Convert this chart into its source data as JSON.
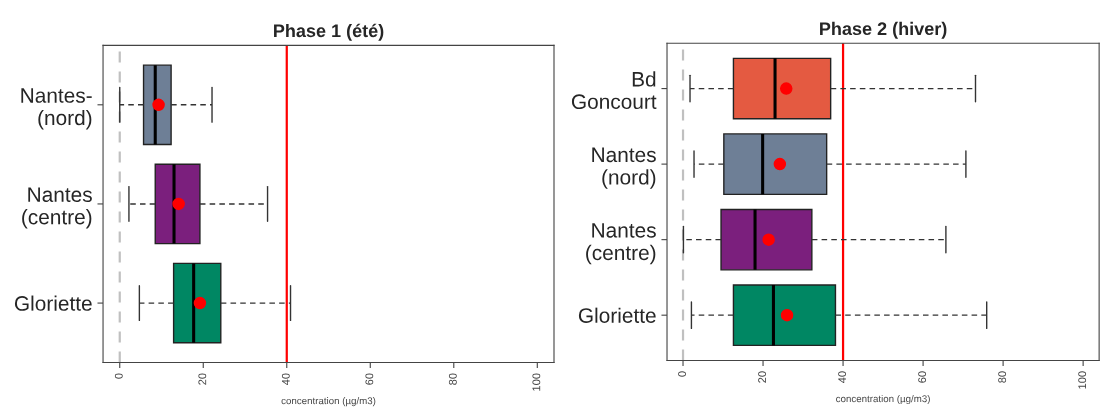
{
  "chart_data": [
    {
      "type": "box",
      "title": "Phase 1 (été)",
      "xlabel": "concentration (µg/m3)",
      "orientation": "horizontal",
      "categories": [
        "Nantes-\n(nord)",
        "Nantes\n(centre)",
        "Gloriette"
      ],
      "colors": [
        "#6e7f96",
        "#7b1f7d",
        "#008763"
      ],
      "boxes": [
        {
          "low": 0,
          "q1": 5.7,
          "median": 8.5,
          "q3": 12.3,
          "high": 22.1,
          "mean": 9.3
        },
        {
          "low": 2.2,
          "q1": 8.5,
          "median": 13.0,
          "q3": 19.2,
          "high": 35.4,
          "mean": 14.1
        },
        {
          "low": 4.7,
          "q1": 12.9,
          "median": 17.7,
          "q3": 24.2,
          "high": 40.9,
          "mean": 19.2
        }
      ],
      "xlim": [
        -4,
        104
      ],
      "xticks": [
        0,
        20,
        40,
        60,
        80,
        100
      ],
      "ref_lines": [
        {
          "axis": "x",
          "value": 0,
          "color": "#c0c0c0",
          "line_style": "dashed"
        },
        {
          "axis": "x",
          "value": 40,
          "color": "#ff0000",
          "line_style": "solid"
        }
      ]
    },
    {
      "type": "box",
      "title": "Phase 2 (hiver)",
      "xlabel": "concentration (µg/m3)",
      "orientation": "horizontal",
      "categories": [
        "Bd\nGoncourt",
        "Nantes\n(nord)",
        "Nantes\n(centre)",
        "Gloriette"
      ],
      "colors": [
        "#e45a41",
        "#6e7f96",
        "#7b1f7d",
        "#008763"
      ],
      "boxes": [
        {
          "low": 1.75,
          "q1": 12.6,
          "median": 23.0,
          "q3": 36.9,
          "high": 73.1,
          "mean": 25.8
        },
        {
          "low": 2.75,
          "q1": 10.2,
          "median": 19.9,
          "q3": 35.9,
          "high": 70.7,
          "mean": 24.2
        },
        {
          "low": 0.1,
          "q1": 9.5,
          "median": 18.0,
          "q3": 32.2,
          "high": 65.7,
          "mean": 21.4
        },
        {
          "low": 2.1,
          "q1": 12.6,
          "median": 22.6,
          "q3": 38.1,
          "high": 75.9,
          "mean": 26.0
        }
      ],
      "xlim": [
        -4,
        104
      ],
      "xticks": [
        0,
        20,
        40,
        60,
        80,
        100
      ],
      "ref_lines": [
        {
          "axis": "x",
          "value": 0,
          "color": "#c0c0c0",
          "line_style": "dashed"
        },
        {
          "axis": "x",
          "value": 40,
          "color": "#ff0000",
          "line_style": "solid"
        }
      ]
    }
  ]
}
